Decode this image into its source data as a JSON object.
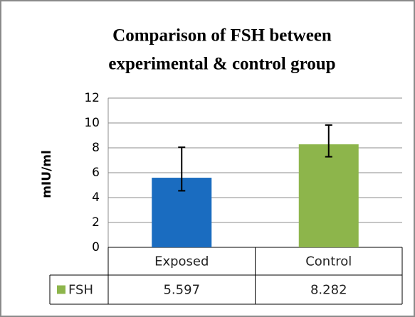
{
  "chart_data": {
    "type": "bar",
    "title": [
      "Comparison of FSH between",
      "experimental & control group"
    ],
    "y_label": "mIU/ml",
    "categories": [
      "Exposed",
      "Control"
    ],
    "series": [
      {
        "name": "FSH",
        "color": "#8db54b",
        "bar_colors": [
          "#1a6cc0",
          "#8db54b"
        ],
        "values": [
          5.597,
          8.282
        ],
        "errors_plus": [
          2.45,
          1.55
        ],
        "errors_minus": [
          1.05,
          1.0
        ]
      }
    ],
    "ylim": [
      0,
      12
    ],
    "yticks": [
      0,
      2,
      4,
      6,
      8,
      10,
      12
    ],
    "grid": true,
    "data_table": true
  }
}
